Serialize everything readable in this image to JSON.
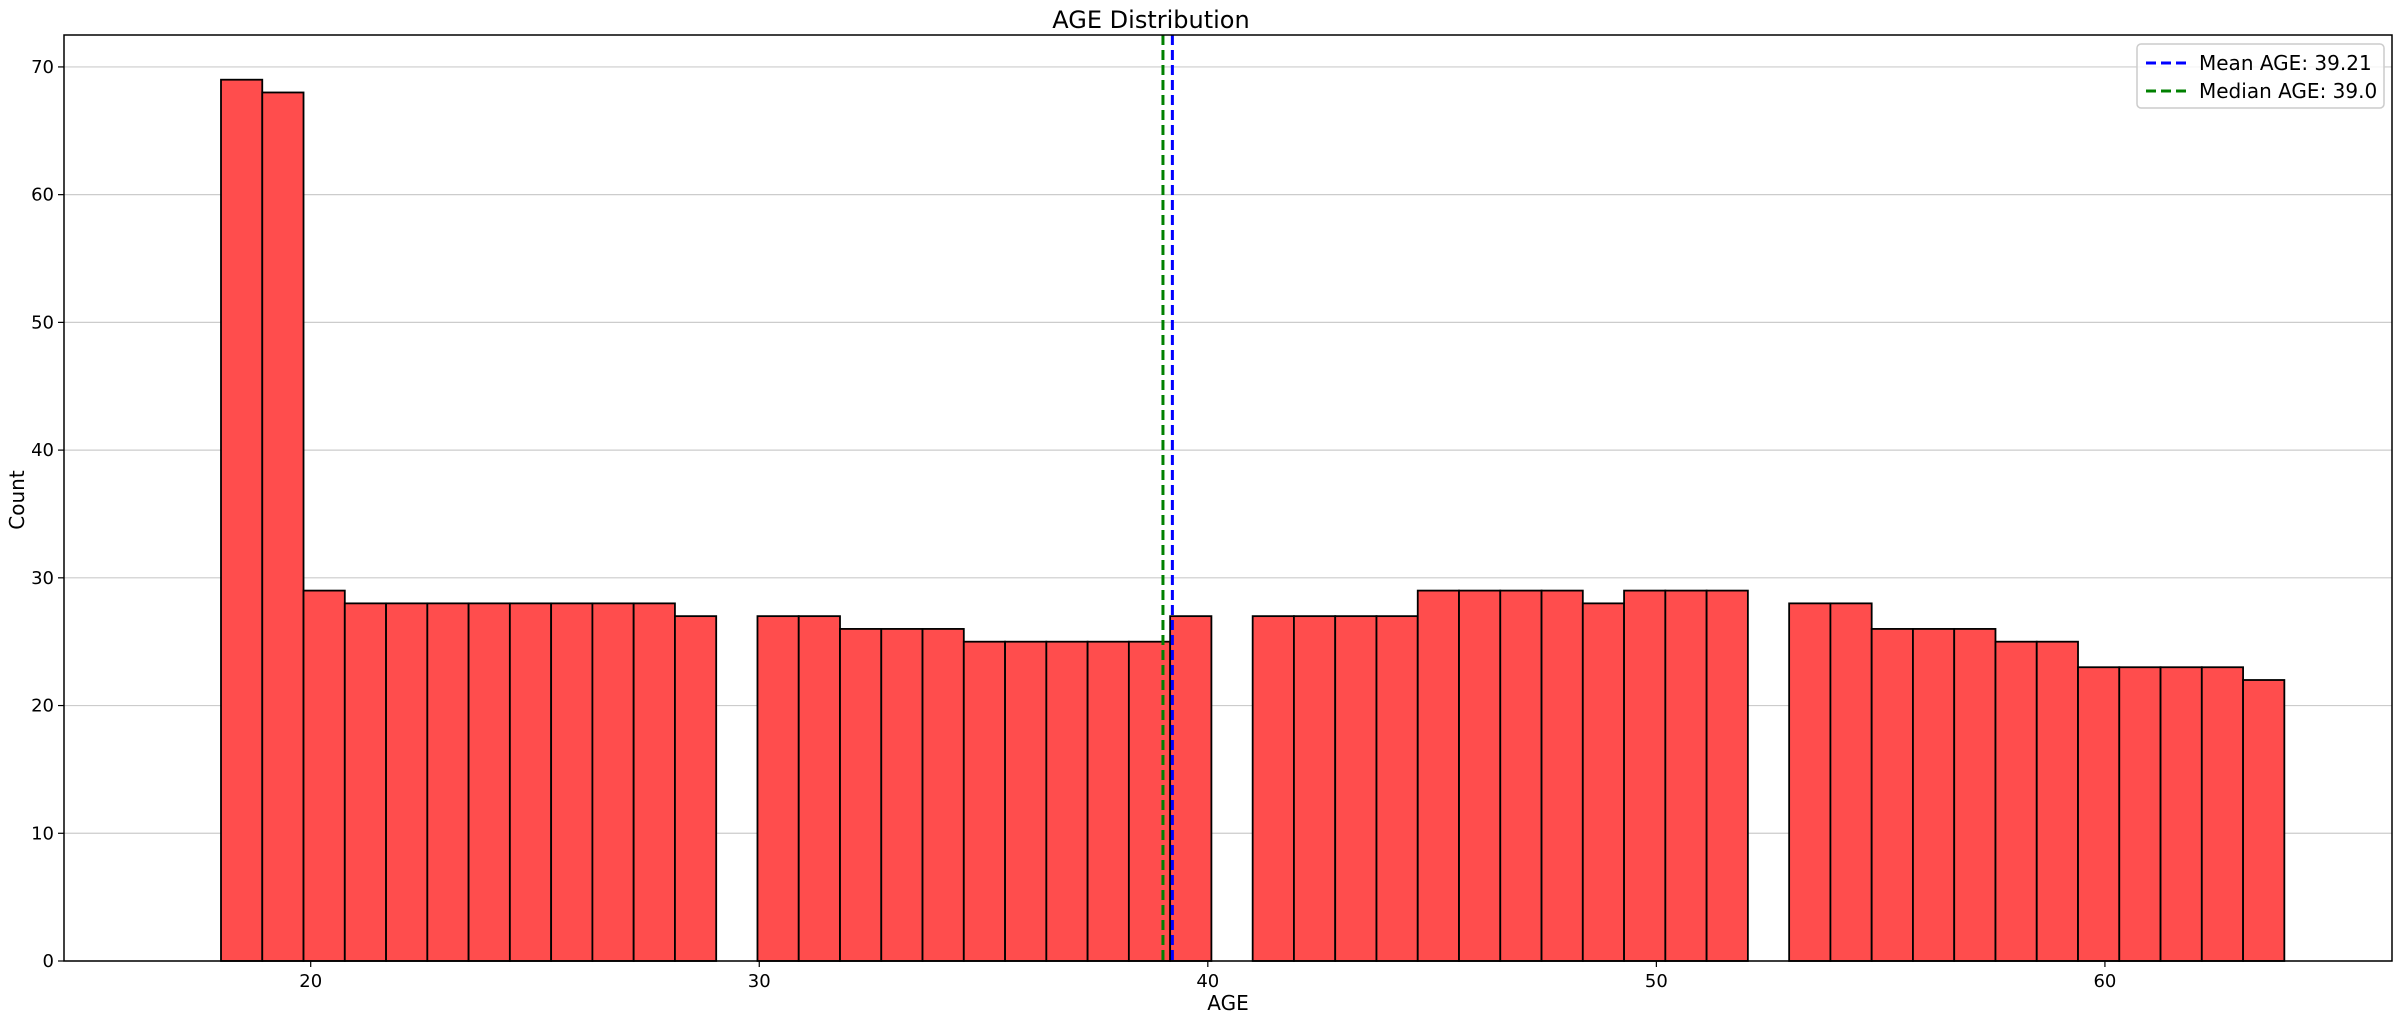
{
  "chart_data": {
    "type": "bar",
    "title": "AGE Distribution",
    "xlabel": "AGE",
    "ylabel": "Count",
    "xlim": [
      14.5,
      66.4
    ],
    "ylim": [
      0,
      72.5
    ],
    "xticks": [
      20,
      30,
      40,
      50,
      60
    ],
    "yticks": [
      0,
      10,
      20,
      30,
      40,
      50,
      60,
      70
    ],
    "grid": "y",
    "bar_color": "#ff4d4d",
    "edge_color": "#000000",
    "bins": {
      "start": 18,
      "width": 0.92,
      "counts": [
        69,
        68,
        29,
        28,
        28,
        28,
        28,
        28,
        28,
        28,
        28,
        27,
        0,
        27,
        27,
        26,
        26,
        26,
        25,
        25,
        25,
        25,
        25,
        27,
        0,
        27,
        27,
        27,
        27,
        29,
        29,
        29,
        29,
        28,
        29,
        29,
        29,
        0,
        28,
        28,
        26,
        26,
        26,
        25,
        25,
        23,
        23,
        23,
        23,
        22
      ]
    },
    "reference_lines": [
      {
        "name": "Mean AGE: 39.21",
        "value": 39.21,
        "color": "#0000ff"
      },
      {
        "name": "Median AGE: 39.0",
        "value": 39.0,
        "color": "#008000"
      }
    ],
    "legend_position": "upper right"
  }
}
